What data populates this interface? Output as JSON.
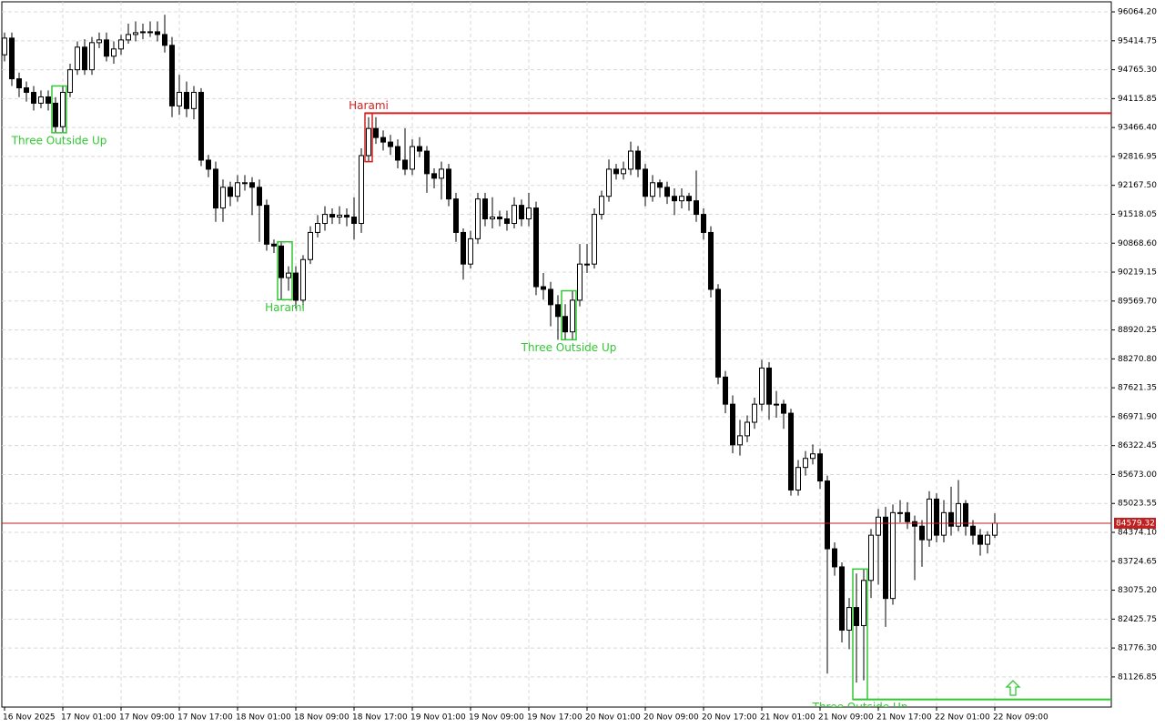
{
  "chart_data": {
    "type": "candlestick",
    "ylim": [
      80450,
      96290
    ],
    "yticks": [
      {
        "value": 96064.2,
        "label": "96064.20"
      },
      95414.75,
      {
        "value": 94765.3,
        "label": "94765.30"
      },
      94115.85,
      {
        "value": 93466.4,
        "label": "93466.40"
      },
      92816.95,
      {
        "value": 92167.5,
        "label": "92167.50"
      },
      91518.05,
      {
        "value": 90868.6,
        "label": "90868.60"
      },
      90219.15,
      {
        "value": 89569.7,
        "label": "89569.70"
      },
      88920.25,
      {
        "value": 88270.8,
        "label": "88270.80"
      },
      87621.35,
      {
        "value": 86971.9,
        "label": "86971.90"
      },
      86322.45,
      {
        "value": 85673,
        "label": "85673.00"
      },
      85023.55,
      {
        "value": 84374.1,
        "label": "84374.10"
      },
      83724.65,
      {
        "value": 83075.2,
        "label": "83075.20"
      },
      82425.75,
      {
        "value": 81776.3,
        "label": "81776.30"
      },
      81126.85
    ],
    "grid": true,
    "up_color": "#ffffff",
    "down_color": "#000000",
    "current_price": 84579.32,
    "current_price_color": "#c0201f",
    "categories": [
      "16 Nov 2025",
      null,
      null,
      null,
      null,
      null,
      null,
      null,
      "17 Nov 01:00",
      null,
      null,
      null,
      null,
      null,
      null,
      null,
      "17 Nov 09:00",
      null,
      null,
      null,
      null,
      null,
      null,
      null,
      "17 Nov 17:00",
      null,
      null,
      null,
      null,
      null,
      null,
      null,
      "18 Nov 01:00",
      null,
      null,
      null,
      null,
      null,
      null,
      null,
      "18 Nov 09:00",
      null,
      null,
      null,
      null,
      null,
      null,
      null,
      "18 Nov 17:00",
      null,
      null,
      null,
      null,
      null,
      null,
      null,
      "19 Nov 01:00",
      null,
      null,
      null,
      null,
      null,
      null,
      null,
      "19 Nov 09:00",
      null,
      null,
      null,
      null,
      null,
      null,
      null,
      "19 Nov 17:00",
      null,
      null,
      null,
      null,
      null,
      null,
      null,
      "20 Nov 01:00",
      null,
      null,
      null,
      null,
      null,
      null,
      null,
      "20 Nov 09:00",
      null,
      null,
      null,
      null,
      null,
      null,
      null,
      "20 Nov 17:00",
      null,
      null,
      null,
      null,
      null,
      null,
      null,
      "21 Nov 01:00",
      null,
      null,
      null,
      null,
      null,
      null,
      null,
      "21 Nov 09:00",
      null,
      null,
      null,
      null,
      null,
      null,
      null,
      "21 Nov 17:00",
      null,
      null,
      null,
      null,
      null,
      null,
      null,
      "22 Nov 01:00",
      null,
      null,
      null,
      null,
      null,
      null,
      null,
      "22 Nov 09:00"
    ],
    "open": [
      95100,
      95475,
      94561,
      94358,
      94257,
      94013,
      94155,
      94013,
      93486,
      94257,
      94764,
      95272,
      94764,
      95373,
      95434,
      95069,
      95231,
      95434,
      95556,
      95597,
      95617,
      95617,
      95556,
      95313,
      93952,
      94257,
      93892,
      94257,
      92734,
      92531,
      91659,
      92125,
      91922,
      92227,
      92227,
      92125,
      91719,
      90847,
      90806,
      90095,
      90197,
      89588,
      90501,
      91110,
      91313,
      91516,
      91456,
      91496,
      91456,
      91313,
      92836,
      93445,
      93242,
      93140,
      93039,
      92734,
      92531,
      93039,
      92937,
      92430,
      92328,
      92531,
      91862,
      91110,
      90400,
      90968,
      91862,
      91415,
      91456,
      91415,
      91313,
      91719,
      91415,
      91659,
      89892,
      89832,
      89487,
      89223,
      88877,
      89588,
      90400,
      90400,
      91516,
      91922,
      92531,
      92430,
      92531,
      92937,
      92531,
      91922,
      92227,
      92125,
      91922,
      91821,
      91922,
      91821,
      91516,
      91110,
      89832,
      87862,
      87253,
      86340,
      86543,
      86847,
      87253,
      88065,
      87253,
      87253,
      87050,
      85325,
      85832,
      86035,
      86137,
      85528,
      84005,
      83599,
      82178,
      82686,
      82280,
      83295,
      84310,
      84716,
      82889,
      84817,
      84817,
      84614,
      84513,
      84208,
      85122,
      84310,
      84817,
      84513,
      85020,
      84513,
      84310,
      84107,
      84310
    ],
    "high": [
      95600,
      95600,
      94700,
      94500,
      94400,
      94300,
      94300,
      94150,
      94400,
      94900,
      95400,
      95450,
      95500,
      95600,
      95600,
      95400,
      95550,
      95800,
      95850,
      95800,
      95850,
      95850,
      96000,
      95500,
      94650,
      94500,
      94400,
      94350,
      92850,
      92700,
      92300,
      92250,
      92400,
      92400,
      92350,
      92300,
      91850,
      90950,
      90900,
      90350,
      90350,
      90600,
      91250,
      91500,
      91700,
      91650,
      91700,
      91650,
      91900,
      93000,
      93700,
      93700,
      93400,
      93300,
      93200,
      93450,
      93200,
      93250,
      93050,
      92550,
      92700,
      92650,
      92000,
      91200,
      91150,
      92000,
      92000,
      91900,
      91600,
      91600,
      91900,
      91850,
      92000,
      91800,
      90200,
      90000,
      89700,
      89500,
      89800,
      90850,
      90850,
      91650,
      92050,
      92750,
      92650,
      92700,
      93150,
      93050,
      92650,
      92400,
      92300,
      92250,
      92100,
      92100,
      92000,
      92500,
      91650,
      91250,
      89950,
      88000,
      87450,
      86900,
      87000,
      87400,
      88250,
      88200,
      87550,
      87350,
      87150,
      86000,
      86200,
      86350,
      86250,
      85650,
      84150,
      83700,
      82900,
      83450,
      83550,
      84450,
      84900,
      84950,
      85000,
      85100,
      85050,
      84750,
      84650,
      85300,
      85250,
      85100,
      85400,
      85550,
      85100,
      84650,
      84450,
      84400,
      84800
    ],
    "low": [
      94950,
      94400,
      94150,
      94050,
      93850,
      93900,
      93850,
      93350,
      93350,
      94150,
      94650,
      94650,
      94650,
      95250,
      94950,
      94900,
      95100,
      95350,
      95400,
      95450,
      95500,
      95400,
      95150,
      93700,
      93750,
      93700,
      93650,
      92600,
      92350,
      91350,
      91350,
      91700,
      91800,
      92050,
      91500,
      90900,
      90700,
      90650,
      89600,
      89800,
      89400,
      89400,
      90400,
      91000,
      91150,
      91300,
      91300,
      91250,
      90950,
      91100,
      92700,
      93100,
      92950,
      92850,
      92550,
      92400,
      92400,
      92800,
      92000,
      92100,
      91850,
      91700,
      90900,
      90050,
      90300,
      90850,
      91250,
      91200,
      91250,
      91150,
      91200,
      91250,
      91250,
      89700,
      89600,
      89000,
      88700,
      88700,
      88700,
      89450,
      90200,
      90300,
      91400,
      91800,
      92300,
      92300,
      92400,
      92350,
      91700,
      91800,
      91900,
      91750,
      91500,
      91650,
      91600,
      91350,
      90950,
      89650,
      87700,
      87050,
      86150,
      86100,
      86400,
      86700,
      87100,
      86900,
      86950,
      86700,
      85200,
      85200,
      85650,
      85900,
      85350,
      81200,
      83400,
      81900,
      81750,
      81000,
      81050,
      82900,
      83200,
      82250,
      82750,
      84600,
      84450,
      83300,
      83600,
      84050,
      84150,
      84150,
      84300,
      84400,
      84300,
      84100,
      83850,
      83900,
      84250
    ],
    "close": [
      95475,
      94561,
      94358,
      94257,
      94013,
      94155,
      94013,
      93486,
      94257,
      94764,
      95272,
      94764,
      95373,
      95434,
      95069,
      95231,
      95434,
      95556,
      95597,
      95617,
      95617,
      95556,
      95313,
      93952,
      94257,
      93892,
      94257,
      92734,
      92531,
      91659,
      92125,
      91922,
      92227,
      92227,
      92125,
      91719,
      90847,
      90806,
      90095,
      90197,
      89588,
      90501,
      91110,
      91313,
      91516,
      91456,
      91496,
      91456,
      91313,
      92836,
      93445,
      93242,
      93140,
      93039,
      92734,
      92531,
      93039,
      92937,
      92430,
      92328,
      92531,
      91862,
      91110,
      90400,
      90968,
      91862,
      91415,
      91456,
      91415,
      91313,
      91719,
      91415,
      91659,
      89892,
      89832,
      89487,
      89223,
      88877,
      89588,
      90400,
      90400,
      91516,
      91922,
      92531,
      92430,
      92531,
      92937,
      92531,
      91922,
      92227,
      92125,
      91922,
      91821,
      91922,
      91821,
      91516,
      91110,
      89832,
      87862,
      87253,
      86340,
      86543,
      86847,
      87253,
      88065,
      87253,
      87253,
      87050,
      85325,
      85832,
      86035,
      86137,
      85528,
      84005,
      83599,
      82178,
      82686,
      82280,
      83295,
      84310,
      84716,
      82889,
      84817,
      84817,
      84614,
      84513,
      84208,
      85122,
      84310,
      84817,
      84513,
      85020,
      84513,
      84310,
      84107,
      84310,
      84579.32
    ],
    "patterns": [
      {
        "name": "Three Outside Up",
        "color": "#32c832",
        "candles": [
          7,
          8
        ]
      },
      {
        "name": "Harami",
        "color": "#32c832",
        "candles": [
          38,
          39
        ]
      },
      {
        "name": "Harami",
        "color": "#d42020",
        "candles": [
          50
        ],
        "level": 93790
      },
      {
        "name": "Three Outside Up",
        "color": "#32c832",
        "candles": [
          77,
          78
        ]
      },
      {
        "name": "Three Outside Up",
        "color": "#32c832",
        "candles": [
          117,
          118
        ],
        "level": 80620
      }
    ]
  }
}
